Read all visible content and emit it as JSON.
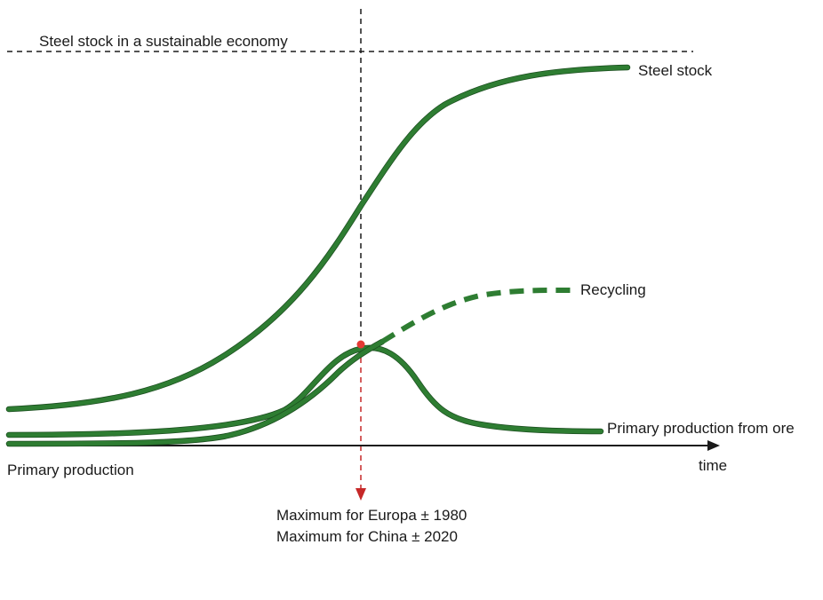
{
  "labels": {
    "sustainable_stock": "Steel stock in a sustainable economy",
    "steel_stock": "Steel stock",
    "recycling": "Recycling",
    "primary_from_ore": "Primary production from ore",
    "time_axis": "time",
    "primary_production": "Primary production",
    "max_europe": "Maximum for Europa ± 1980",
    "max_china": "Maximum for China ± 2020"
  },
  "colors": {
    "curve": "#2e7d32",
    "curve_edge": "#1b4d1f",
    "marker": "#e53935",
    "arrow_red": "#c62828",
    "ink": "#1a1a1a"
  }
}
